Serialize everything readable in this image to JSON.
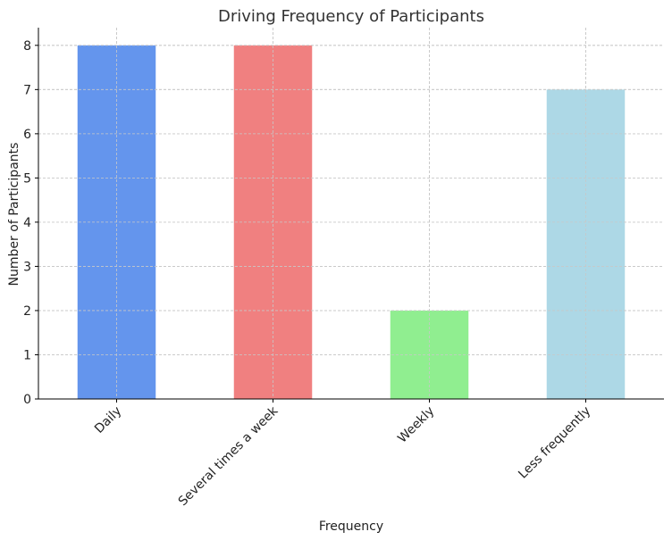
{
  "chart_data": {
    "type": "bar",
    "title": "Driving Frequency of Participants",
    "xlabel": "Frequency",
    "ylabel": "Number of Participants",
    "categories": [
      "Daily",
      "Several times a week",
      "Weekly",
      "Less frequently"
    ],
    "values": [
      8,
      8,
      2,
      7
    ],
    "colors": [
      "#6495ed",
      "#f08080",
      "#90ee90",
      "#add8e6"
    ],
    "ylim": [
      0,
      8.4
    ],
    "yticks": [
      0,
      1,
      2,
      3,
      4,
      5,
      6,
      7,
      8
    ],
    "grid": true,
    "legend": false
  }
}
